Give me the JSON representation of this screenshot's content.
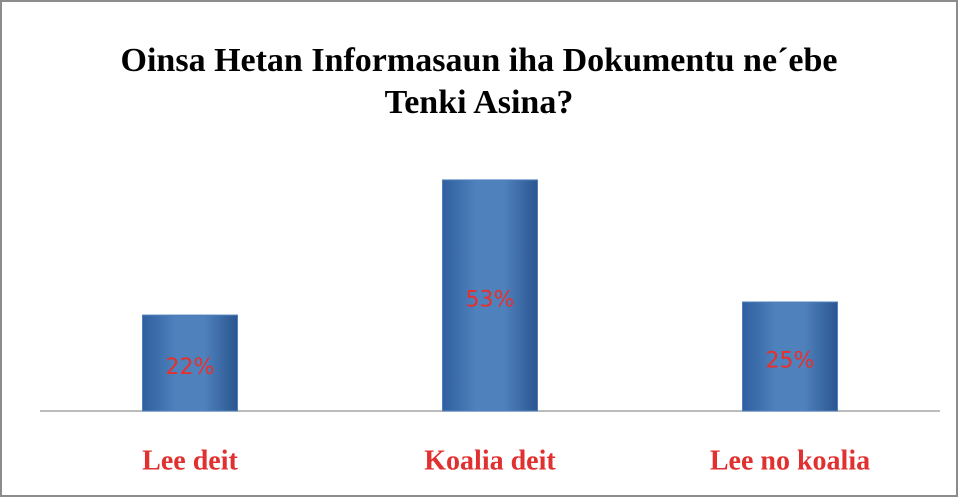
{
  "chart_data": {
    "type": "bar",
    "title": "Oinsa Hetan Informasaun iha Dokumentu ne´ebe Tenki Asina?",
    "categories": [
      "Lee deit",
      "Koalia deit",
      "Lee no koalia"
    ],
    "values": [
      22,
      53,
      25
    ],
    "value_labels": [
      "22%",
      "53%",
      "25%"
    ],
    "color": "#4f81bd"
  }
}
